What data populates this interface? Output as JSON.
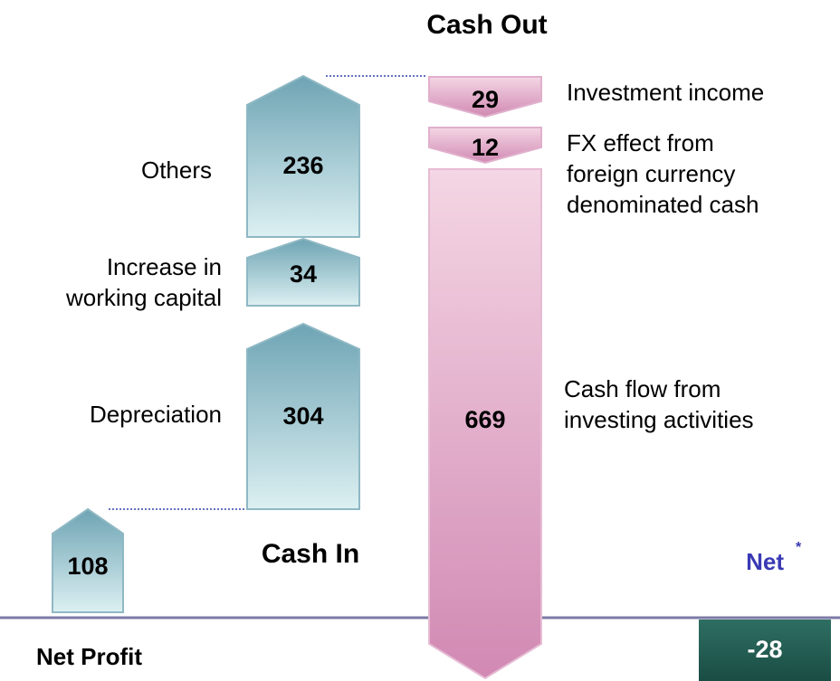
{
  "cash_in": {
    "title": "Cash In",
    "items": [
      {
        "label": [
          "Net Profit"
        ],
        "value": 108
      },
      {
        "label": [
          "Depreciation"
        ],
        "value": 304
      },
      {
        "label": [
          "Increase in",
          "working capital"
        ],
        "value": 34
      },
      {
        "label": [
          "Others"
        ],
        "value": 236
      }
    ]
  },
  "cash_out": {
    "title": "Cash Out",
    "items": [
      {
        "label": [
          "Investment income"
        ],
        "value": 29
      },
      {
        "label": [
          "FX effect from",
          "foreign currency",
          "denominated cash"
        ],
        "value": 12
      },
      {
        "label": [
          "Cash flow from",
          "investing activities"
        ],
        "value": 669
      }
    ]
  },
  "net": {
    "label": "Net",
    "footnote": "*",
    "value": -28
  }
}
